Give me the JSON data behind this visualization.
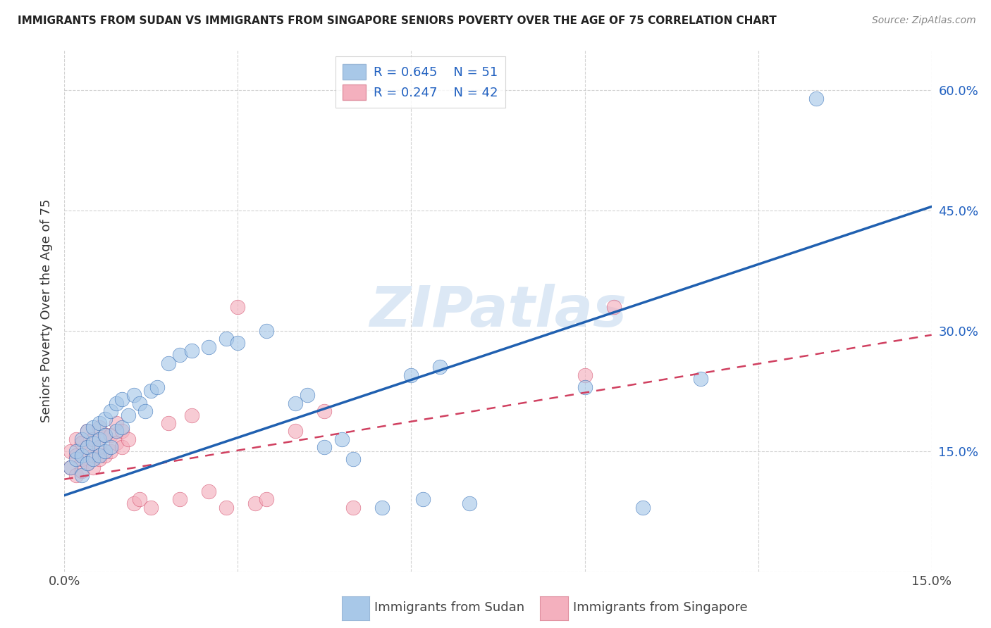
{
  "title": "IMMIGRANTS FROM SUDAN VS IMMIGRANTS FROM SINGAPORE SENIORS POVERTY OVER THE AGE OF 75 CORRELATION CHART",
  "source": "Source: ZipAtlas.com",
  "ylabel_label": "Seniors Poverty Over the Age of 75",
  "xlim": [
    0.0,
    0.15
  ],
  "ylim": [
    0.0,
    0.65
  ],
  "xtick_vals": [
    0.0,
    0.03,
    0.06,
    0.09,
    0.12,
    0.15
  ],
  "xtick_labels": [
    "0.0%",
    "",
    "",
    "",
    "",
    "15.0%"
  ],
  "ytick_vals": [
    0.0,
    0.15,
    0.3,
    0.45,
    0.6
  ],
  "ytick_labels_right": [
    "",
    "15.0%",
    "30.0%",
    "45.0%",
    "60.0%"
  ],
  "color_sudan": "#a8c8e8",
  "color_singapore": "#f4b0be",
  "trendline_sudan_color": "#2060b0",
  "trendline_singapore_color": "#d04060",
  "watermark": "ZIPatlas",
  "background_color": "#ffffff",
  "grid_color": "#c8c8c8",
  "sudan_trendline": [
    0.095,
    0.455
  ],
  "singapore_trendline": [
    0.115,
    0.295
  ],
  "sudan_x": [
    0.001,
    0.002,
    0.002,
    0.003,
    0.003,
    0.003,
    0.004,
    0.004,
    0.004,
    0.005,
    0.005,
    0.005,
    0.006,
    0.006,
    0.006,
    0.007,
    0.007,
    0.007,
    0.008,
    0.008,
    0.009,
    0.009,
    0.01,
    0.01,
    0.011,
    0.012,
    0.013,
    0.014,
    0.015,
    0.016,
    0.018,
    0.02,
    0.022,
    0.025,
    0.028,
    0.03,
    0.035,
    0.04,
    0.042,
    0.045,
    0.048,
    0.05,
    0.055,
    0.06,
    0.062,
    0.065,
    0.07,
    0.09,
    0.1,
    0.11,
    0.13
  ],
  "sudan_y": [
    0.13,
    0.14,
    0.15,
    0.12,
    0.145,
    0.165,
    0.135,
    0.155,
    0.175,
    0.14,
    0.16,
    0.18,
    0.145,
    0.165,
    0.185,
    0.15,
    0.17,
    0.19,
    0.155,
    0.2,
    0.175,
    0.21,
    0.18,
    0.215,
    0.195,
    0.22,
    0.21,
    0.2,
    0.225,
    0.23,
    0.26,
    0.27,
    0.275,
    0.28,
    0.29,
    0.285,
    0.3,
    0.21,
    0.22,
    0.155,
    0.165,
    0.14,
    0.08,
    0.245,
    0.09,
    0.255,
    0.085,
    0.23,
    0.08,
    0.24,
    0.59
  ],
  "singapore_x": [
    0.001,
    0.001,
    0.002,
    0.002,
    0.002,
    0.003,
    0.003,
    0.003,
    0.004,
    0.004,
    0.004,
    0.005,
    0.005,
    0.005,
    0.006,
    0.006,
    0.006,
    0.007,
    0.007,
    0.008,
    0.008,
    0.009,
    0.009,
    0.01,
    0.01,
    0.011,
    0.012,
    0.013,
    0.015,
    0.018,
    0.02,
    0.022,
    0.025,
    0.028,
    0.03,
    0.033,
    0.035,
    0.04,
    0.045,
    0.05,
    0.09,
    0.095
  ],
  "singapore_y": [
    0.13,
    0.15,
    0.12,
    0.145,
    0.165,
    0.125,
    0.14,
    0.16,
    0.135,
    0.155,
    0.175,
    0.13,
    0.145,
    0.165,
    0.14,
    0.155,
    0.18,
    0.145,
    0.17,
    0.15,
    0.17,
    0.16,
    0.185,
    0.155,
    0.175,
    0.165,
    0.085,
    0.09,
    0.08,
    0.185,
    0.09,
    0.195,
    0.1,
    0.08,
    0.33,
    0.085,
    0.09,
    0.175,
    0.2,
    0.08,
    0.245,
    0.33
  ]
}
